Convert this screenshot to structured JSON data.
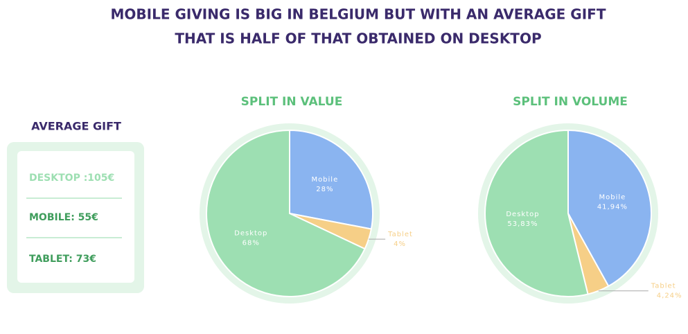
{
  "header": {
    "title_lines": [
      "MOBILE GIVING IS BIG IN BELGIUM BUT WITH AN AVERAGE GIFT",
      "THAT IS HALF OF THAT OBTAINED ON DESKTOP"
    ]
  },
  "average_gift": {
    "title": "AVERAGE GIFT",
    "items": [
      "DESKTOP :105€",
      "MOBILE: 55€",
      "TABLET: 73€"
    ]
  },
  "chart_data": [
    {
      "type": "pie",
      "title": "SPLIT IN VALUE",
      "categories": [
        "Mobile",
        "Tablet",
        "Desktop"
      ],
      "values": [
        28,
        4,
        68
      ],
      "value_labels": [
        "28%",
        "4%",
        "68%"
      ],
      "colors": [
        "#8ab4f0",
        "#f6cf87",
        "#9ddfb2"
      ]
    },
    {
      "type": "pie",
      "title": "SPLIT IN VOLUME",
      "categories": [
        "Mobile",
        "Tablet",
        "Desktop"
      ],
      "values": [
        41.94,
        4.24,
        53.83
      ],
      "value_labels": [
        "41,94%",
        "4,24%",
        "53,83%"
      ],
      "colors": [
        "#8ab4f0",
        "#f6cf87",
        "#9ddfb2"
      ]
    }
  ]
}
